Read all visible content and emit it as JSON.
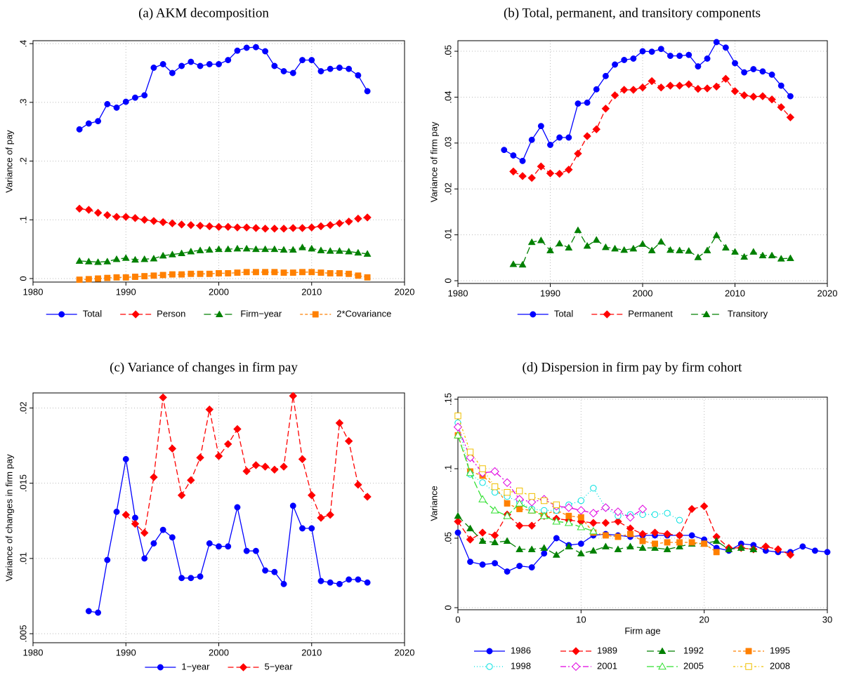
{
  "chart_data": [
    {
      "type": "line",
      "title": "(a) AKM decomposition",
      "ylabel": "Variance of pay",
      "grid": true,
      "xlim": [
        1980,
        2020
      ],
      "xticks": [
        1980,
        1990,
        2000,
        2010,
        2020
      ],
      "ylim": [
        -0.006,
        0.405
      ],
      "yticks": [
        0,
        {
          "value": 0.1,
          "label": ".1"
        },
        {
          "value": 0.2,
          "label": ".2"
        },
        {
          "value": 0.3,
          "label": ".3"
        },
        {
          "value": 0.4,
          "label": ".4"
        }
      ],
      "x": [
        1985,
        1986,
        1987,
        1988,
        1989,
        1990,
        1991,
        1992,
        1993,
        1994,
        1995,
        1996,
        1997,
        1998,
        1999,
        2000,
        2001,
        2002,
        2003,
        2004,
        2005,
        2006,
        2007,
        2008,
        2009,
        2010,
        2011,
        2012,
        2013,
        2014,
        2015,
        2016
      ],
      "series": [
        {
          "name": "Total",
          "color": "#0000ff",
          "marker": "circle",
          "dash": "none",
          "values": [
            0.254,
            0.264,
            0.268,
            0.297,
            0.291,
            0.301,
            0.308,
            0.312,
            0.359,
            0.365,
            0.35,
            0.362,
            0.369,
            0.362,
            0.365,
            0.365,
            0.372,
            0.388,
            0.393,
            0.394,
            0.387,
            0.362,
            0.353,
            0.35,
            0.372,
            0.372,
            0.353,
            0.357,
            0.359,
            0.357,
            0.346,
            0.319
          ]
        },
        {
          "name": "Person",
          "color": "#ff0000",
          "marker": "diamond",
          "dash": "8 4",
          "values": [
            0.119,
            0.117,
            0.112,
            0.108,
            0.105,
            0.105,
            0.103,
            0.1,
            0.098,
            0.096,
            0.094,
            0.092,
            0.091,
            0.09,
            0.089,
            0.088,
            0.088,
            0.087,
            0.087,
            0.086,
            0.085,
            0.085,
            0.085,
            0.086,
            0.086,
            0.087,
            0.089,
            0.091,
            0.094,
            0.097,
            0.102,
            0.104
          ]
        },
        {
          "name": "Firm−year",
          "color": "#008000",
          "marker": "triangle",
          "dash": "10 5",
          "values": [
            0.03,
            0.029,
            0.028,
            0.029,
            0.033,
            0.035,
            0.032,
            0.033,
            0.034,
            0.039,
            0.041,
            0.043,
            0.046,
            0.048,
            0.049,
            0.05,
            0.05,
            0.051,
            0.051,
            0.05,
            0.05,
            0.05,
            0.049,
            0.049,
            0.053,
            0.051,
            0.048,
            0.047,
            0.047,
            0.046,
            0.044,
            0.042
          ]
        },
        {
          "name": "2*Covariance",
          "color": "#ff8000",
          "marker": "square",
          "dash": "4 3",
          "values": [
            -0.002,
            -0.001,
            0,
            0.001,
            0.002,
            0.002,
            0.003,
            0.004,
            0.005,
            0.006,
            0.007,
            0.007,
            0.008,
            0.008,
            0.008,
            0.009,
            0.009,
            0.01,
            0.011,
            0.011,
            0.011,
            0.011,
            0.01,
            0.01,
            0.011,
            0.011,
            0.01,
            0.009,
            0.009,
            0.008,
            0.005,
            0.002
          ]
        }
      ]
    },
    {
      "type": "line",
      "title": "(b) Total, permanent, and transitory components",
      "ylabel": "Variance of firm pay",
      "grid": true,
      "xlim": [
        1980,
        2020
      ],
      "xticks": [
        1980,
        1990,
        2000,
        2010,
        2020
      ],
      "ylim": [
        -0.0006,
        0.0523
      ],
      "yticks": [
        0,
        {
          "value": 0.01,
          "label": ".01"
        },
        {
          "value": 0.02,
          "label": ".02"
        },
        {
          "value": 0.03,
          "label": ".03"
        },
        {
          "value": 0.04,
          "label": ".04"
        },
        {
          "value": 0.05,
          "label": ".05"
        }
      ],
      "x": [
        1985,
        1986,
        1987,
        1988,
        1989,
        1990,
        1991,
        1992,
        1993,
        1994,
        1995,
        1996,
        1997,
        1998,
        1999,
        2000,
        2001,
        2002,
        2003,
        2004,
        2005,
        2006,
        2007,
        2008,
        2009,
        2010,
        2011,
        2012,
        2013,
        2014,
        2015,
        2016
      ],
      "series": [
        {
          "name": "Total",
          "color": "#0000ff",
          "marker": "circle",
          "dash": "none",
          "values": [
            0.0285,
            0.0273,
            0.0261,
            0.0307,
            0.0337,
            0.0296,
            0.0312,
            0.0312,
            0.0386,
            0.0388,
            0.0417,
            0.0446,
            0.0471,
            0.0481,
            0.0484,
            0.05,
            0.0499,
            0.0505,
            0.049,
            0.049,
            0.0492,
            0.0467,
            0.0484,
            0.052,
            0.0508,
            0.0474,
            0.0454,
            0.0461,
            0.0456,
            0.0449,
            0.0425,
            0.0402
          ]
        },
        {
          "name": "Permanent",
          "color": "#ff0000",
          "marker": "diamond",
          "dash": "8 4",
          "values": [
            null,
            0.0238,
            0.0228,
            0.0224,
            0.0249,
            0.0234,
            0.0233,
            0.0242,
            0.0277,
            0.0315,
            0.033,
            0.0375,
            0.0404,
            0.0416,
            0.0416,
            0.0421,
            0.0435,
            0.0421,
            0.0425,
            0.0425,
            0.0428,
            0.0418,
            0.0419,
            0.0423,
            0.044,
            0.0413,
            0.0404,
            0.0401,
            0.0402,
            0.0395,
            0.0378,
            0.0356
          ]
        },
        {
          "name": "Transitory",
          "color": "#008000",
          "marker": "triangle",
          "dash": "10 5",
          "values": [
            null,
            0.0036,
            0.0035,
            0.0084,
            0.0088,
            0.0066,
            0.0081,
            0.0072,
            0.011,
            0.0076,
            0.0089,
            0.0073,
            0.007,
            0.0067,
            0.007,
            0.008,
            0.0066,
            0.0085,
            0.0067,
            0.0066,
            0.0065,
            0.0051,
            0.0066,
            0.0099,
            0.0072,
            0.0063,
            0.0052,
            0.0063,
            0.0055,
            0.0055,
            0.0048,
            0.0049
          ]
        }
      ]
    },
    {
      "type": "line",
      "title": "(c) Variance of changes in firm pay",
      "ylabel": "Variance of changes in firm pay",
      "grid": true,
      "xlim": [
        1980,
        2020
      ],
      "xticks": [
        1980,
        1990,
        2000,
        2010,
        2020
      ],
      "ylim": [
        0.0044,
        0.021
      ],
      "yticks": [
        {
          "value": 0.005,
          "label": ".005"
        },
        {
          "value": 0.01,
          "label": ".01"
        },
        {
          "value": 0.015,
          "label": ".015"
        },
        {
          "value": 0.02,
          "label": ".02"
        }
      ],
      "x": [
        1986,
        1987,
        1988,
        1989,
        1990,
        1991,
        1992,
        1993,
        1994,
        1995,
        1996,
        1997,
        1998,
        1999,
        2000,
        2001,
        2002,
        2003,
        2004,
        2005,
        2006,
        2007,
        2008,
        2009,
        2010,
        2011,
        2012,
        2013,
        2014,
        2015,
        2016
      ],
      "series": [
        {
          "name": "1−year",
          "color": "#0000ff",
          "marker": "circle",
          "dash": "none",
          "values": [
            0.0065,
            0.0064,
            0.0099,
            0.0131,
            0.0166,
            0.0127,
            0.01,
            0.011,
            0.0119,
            0.0114,
            0.0087,
            0.0087,
            0.0088,
            0.011,
            0.0108,
            0.0108,
            0.0134,
            0.0105,
            0.0105,
            0.0092,
            0.0091,
            0.0083,
            0.0135,
            0.012,
            0.012,
            0.0085,
            0.0084,
            0.0083,
            0.0086,
            0.0086,
            0.0084
          ]
        },
        {
          "name": "5−year",
          "color": "#ff0000",
          "marker": "diamond",
          "dash": "8 4",
          "values": [
            null,
            null,
            null,
            null,
            0.0129,
            0.0123,
            0.0117,
            0.0154,
            0.0207,
            0.0173,
            0.0142,
            0.0152,
            0.0167,
            0.0199,
            0.0168,
            0.0176,
            0.0186,
            0.0158,
            0.0162,
            0.0161,
            0.0159,
            0.0161,
            0.0208,
            0.0166,
            0.0142,
            0.0127,
            0.0129,
            0.019,
            0.0178,
            0.0149,
            0.0141
          ]
        }
      ]
    },
    {
      "type": "line",
      "title": "(d) Dispersion in firm pay by firm cohort",
      "ylabel": "Variance",
      "xlabel": "Firm age",
      "grid": true,
      "xlim": [
        0,
        30
      ],
      "xticks": [
        0,
        10,
        20,
        30
      ],
      "ylim": [
        -0.0015,
        0.1515
      ],
      "yticks": [
        0,
        {
          "value": 0.05,
          "label": ".05"
        },
        {
          "value": 0.1,
          "label": ".1"
        },
        {
          "value": 0.15,
          "label": ".15"
        }
      ],
      "x": [
        0,
        1,
        2,
        3,
        4,
        5,
        6,
        7,
        8,
        9,
        10,
        11,
        12,
        13,
        14,
        15,
        16,
        17,
        18,
        19,
        20,
        21,
        22,
        23,
        24,
        25,
        26,
        27,
        28,
        29,
        30
      ],
      "series": [
        {
          "name": "1986",
          "color": "#0000ff",
          "marker": "circle",
          "dash": "none",
          "values": [
            0.054,
            0.033,
            0.031,
            0.032,
            0.026,
            0.03,
            0.029,
            0.039,
            0.05,
            0.045,
            0.046,
            0.052,
            0.053,
            0.052,
            0.051,
            0.052,
            0.052,
            0.052,
            0.052,
            0.052,
            0.049,
            0.043,
            0.041,
            0.046,
            0.045,
            0.041,
            0.04,
            0.04,
            0.044,
            0.041,
            0.04
          ]
        },
        {
          "name": "1989",
          "color": "#ff0000",
          "marker": "diamond",
          "dash": "8 4",
          "values": [
            0.062,
            0.049,
            0.054,
            0.052,
            0.067,
            0.059,
            0.059,
            0.066,
            0.064,
            0.063,
            0.062,
            0.061,
            0.061,
            0.062,
            0.057,
            0.053,
            0.054,
            0.053,
            0.052,
            0.071,
            0.073,
            0.051,
            0.043,
            0.043,
            0.042,
            0.044,
            0.042,
            0.038,
            null,
            null,
            null
          ]
        },
        {
          "name": "1992",
          "color": "#008000",
          "marker": "triangle",
          "dash": "10 5",
          "values": [
            0.066,
            0.057,
            0.048,
            0.047,
            0.048,
            0.042,
            0.042,
            0.043,
            0.038,
            0.044,
            0.039,
            0.041,
            0.044,
            0.042,
            0.044,
            0.043,
            0.043,
            0.042,
            0.044,
            0.046,
            0.046,
            0.048,
            0.042,
            0.043,
            0.042,
            null,
            null,
            null,
            null,
            null,
            null
          ]
        },
        {
          "name": "1995",
          "color": "#ff8000",
          "marker": "square",
          "dash": "4 3",
          "values": [
            0.124,
            0.098,
            0.095,
            0.087,
            0.075,
            0.071,
            0.07,
            0.067,
            0.07,
            0.066,
            0.065,
            0.054,
            0.052,
            0.051,
            0.053,
            0.048,
            0.046,
            0.047,
            0.047,
            0.047,
            0.046,
            0.04,
            null,
            null,
            null,
            null,
            null,
            null,
            null,
            null,
            null
          ]
        },
        {
          "name": "1998",
          "color": "#00e0e0",
          "marker": "circle-open",
          "dash": "1 3",
          "values": [
            0.133,
            0.096,
            0.09,
            0.083,
            0.08,
            0.076,
            0.071,
            0.07,
            0.07,
            0.074,
            0.077,
            0.086,
            0.072,
            0.066,
            0.067,
            0.067,
            0.067,
            0.068,
            0.063,
            null,
            null,
            null,
            null,
            null,
            null,
            null,
            null,
            null,
            null,
            null,
            null
          ]
        },
        {
          "name": "2001",
          "color": "#e000e0",
          "marker": "diamond-open",
          "dash": "8 3 2 3",
          "values": [
            0.13,
            0.108,
            0.097,
            0.098,
            0.09,
            0.078,
            0.076,
            0.078,
            0.073,
            0.072,
            0.07,
            0.068,
            0.072,
            0.069,
            0.065,
            0.071,
            null,
            null,
            null,
            null,
            null,
            null,
            null,
            null,
            null,
            null,
            null,
            null,
            null,
            null,
            null
          ]
        },
        {
          "name": "2005",
          "color": "#30e030",
          "marker": "triangle-open",
          "dash": "10 4",
          "values": [
            0.124,
            0.097,
            0.078,
            0.07,
            0.066,
            0.075,
            0.07,
            0.066,
            0.062,
            0.061,
            0.058,
            0.055,
            null,
            null,
            null,
            null,
            null,
            null,
            null,
            null,
            null,
            null,
            null,
            null,
            null,
            null,
            null,
            null,
            null,
            null,
            null
          ]
        },
        {
          "name": "2008",
          "color": "#f0c000",
          "marker": "square-open",
          "dash": "3 3 1 3",
          "values": [
            0.138,
            0.112,
            0.1,
            0.087,
            0.083,
            0.084,
            0.08,
            0.077,
            0.074,
            null,
            null,
            null,
            null,
            null,
            null,
            null,
            null,
            null,
            null,
            null,
            null,
            null,
            null,
            null,
            null,
            null,
            null,
            null,
            null,
            null,
            null
          ]
        }
      ]
    }
  ]
}
